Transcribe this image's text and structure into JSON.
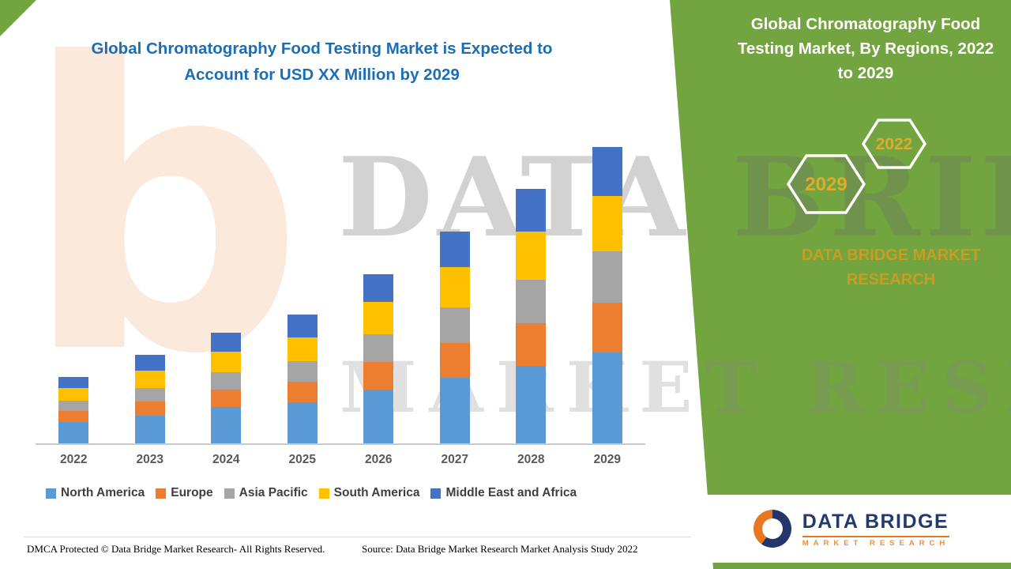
{
  "header": {
    "title": "Global Chromatography Food Testing Market is Expected to Account for USD XX Million by 2029"
  },
  "side_panel": {
    "title": "Global Chromatography Food Testing Market, By Regions, 2022 to 2029",
    "hexagon_back_label": "2029",
    "hexagon_front_label": "2022",
    "brand": "DATA BRIDGE MARKET RESEARCH",
    "panel_color": "#72A43F",
    "gold_color": "#DDAC2E"
  },
  "watermark": {
    "glyph": "b",
    "line1": "DATA BRIDGE",
    "line2": "MARKET RESEARCH"
  },
  "logo_card": {
    "brand": "DATA BRIDGE",
    "subtitle": "MARKET RESEARCH"
  },
  "footer": {
    "dmca": "DMCA Protected © Data Bridge Market Research- All Rights Reserved.",
    "source": "Source: Data Bridge Market Research Market Analysis Study 2022"
  },
  "chart_data": {
    "type": "bar",
    "stacked": true,
    "title": "Global Chromatography Food Testing Market, By Regions, 2022 to 2029",
    "xlabel": "",
    "ylabel": "",
    "ylim": [
      0,
      400
    ],
    "grid": false,
    "legend_position": "bottom",
    "categories": [
      "2022",
      "2023",
      "2024",
      "2025",
      "2026",
      "2027",
      "2028",
      "2029"
    ],
    "series": [
      {
        "name": "North America",
        "color": "#5B9BD5",
        "values": [
          28,
          36,
          47,
          53,
          70,
          85,
          100,
          118
        ]
      },
      {
        "name": "Europe",
        "color": "#ED7D31",
        "values": [
          14,
          18,
          22,
          27,
          36,
          45,
          55,
          64
        ]
      },
      {
        "name": "Asia Pacific",
        "color": "#A5A5A5",
        "values": [
          13,
          17,
          22,
          27,
          36,
          46,
          56,
          66
        ]
      },
      {
        "name": "South America",
        "color": "#FFC000",
        "values": [
          16,
          22,
          27,
          31,
          42,
          52,
          62,
          72
        ]
      },
      {
        "name": "Middle East and Africa",
        "color": "#4472C4",
        "values": [
          14,
          20,
          25,
          30,
          36,
          46,
          55,
          63
        ]
      }
    ]
  }
}
